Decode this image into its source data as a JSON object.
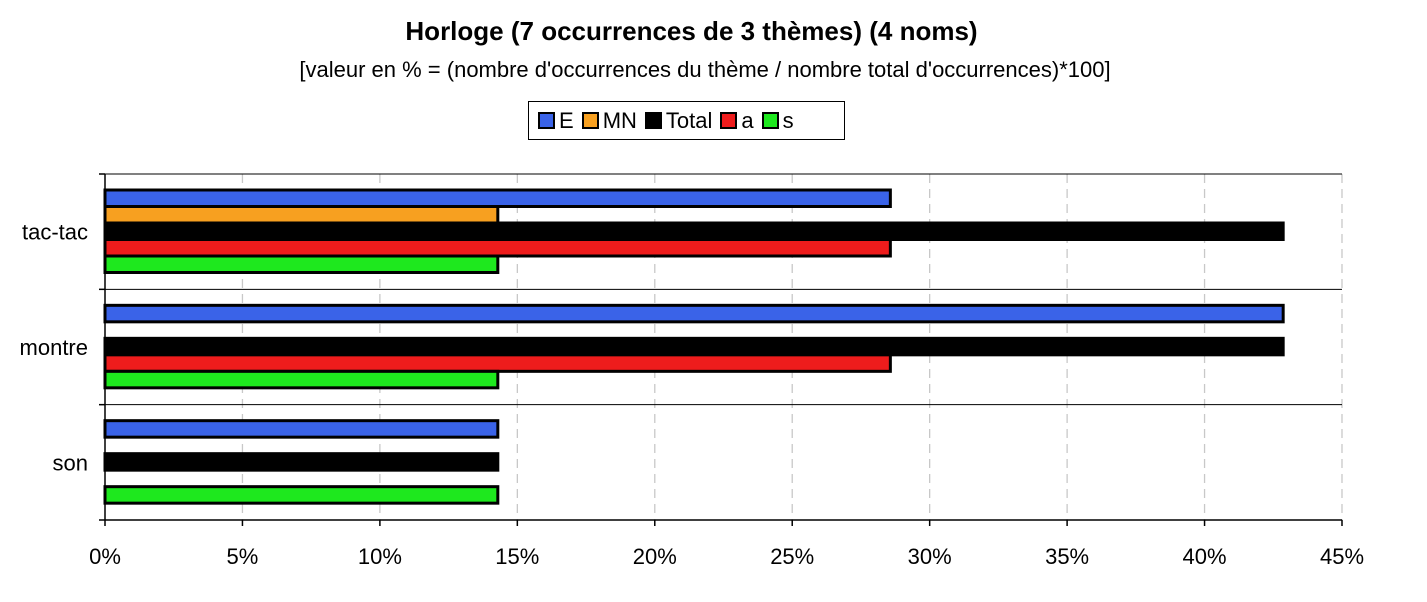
{
  "chart_data": {
    "type": "bar",
    "orientation": "horizontal",
    "title": "Horloge (7 occurrences de 3 thèmes) (4 noms)",
    "subtitle": "[valeur en % = (nombre d'occurrences du thème / nombre total d'occurrences)*100]",
    "categories": [
      "tac-tac",
      "montre",
      "son"
    ],
    "series": [
      {
        "name": "E",
        "color": "#3a63e8",
        "values": [
          28.57,
          42.86,
          14.29
        ]
      },
      {
        "name": "MN",
        "color": "#f7a020",
        "values": [
          14.29,
          null,
          null
        ]
      },
      {
        "name": "Total",
        "color": "#000000",
        "values": [
          42.86,
          42.86,
          14.29
        ]
      },
      {
        "name": "a",
        "color": "#ee1c1c",
        "values": [
          28.57,
          28.57,
          null
        ]
      },
      {
        "name": "s",
        "color": "#1ee81e",
        "values": [
          14.29,
          14.29,
          14.29
        ]
      }
    ],
    "xlim": [
      0,
      45
    ],
    "xticks": [
      "0%",
      "5%",
      "10%",
      "15%",
      "20%",
      "25%",
      "30%",
      "35%",
      "40%",
      "45%"
    ],
    "grid": "vertical dashed",
    "legend_position": "top"
  }
}
